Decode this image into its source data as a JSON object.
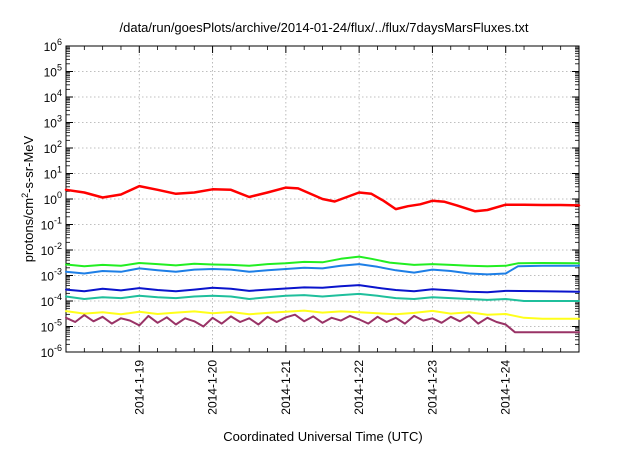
{
  "chart_data": {
    "type": "line",
    "title": "/data/run/goesPlots/archive/2014-01-24/flux/../flux/7daysMarsFluxes.txt",
    "xlabel": "Coordinated Universal Time (UTC)",
    "ylabel": {
      "base": "protons/cm",
      "sup": "2",
      "rest": "-s-sr-MeV"
    },
    "y_scale": "log",
    "ylim": [
      1e-06,
      1000000.0
    ],
    "y_ticks": [
      {
        "value": 1000000.0,
        "base": "10",
        "exp": "6"
      },
      {
        "value": 100000.0,
        "base": "10",
        "exp": "5"
      },
      {
        "value": 10000.0,
        "base": "10",
        "exp": "4"
      },
      {
        "value": 1000.0,
        "base": "10",
        "exp": "3"
      },
      {
        "value": 100.0,
        "base": "10",
        "exp": "2"
      },
      {
        "value": 10.0,
        "base": "10",
        "exp": "1"
      },
      {
        "value": 1,
        "base": "10",
        "exp": "0"
      },
      {
        "value": 0.1,
        "base": "10",
        "exp": "-1"
      },
      {
        "value": 0.01,
        "base": "10",
        "exp": "-2"
      },
      {
        "value": 0.001,
        "base": "10",
        "exp": "-3"
      },
      {
        "value": 0.0001,
        "base": "10",
        "exp": "-4"
      },
      {
        "value": 1e-05,
        "base": "10",
        "exp": "-5"
      },
      {
        "value": 1e-06,
        "base": "10",
        "exp": "-6"
      }
    ],
    "xlim": [
      "2014-01-18 00:00",
      "2014-01-25 00:00"
    ],
    "x_ticks": [
      {
        "value": "2014-01-19 00:00",
        "label": "2014-1-19"
      },
      {
        "value": "2014-01-20 00:00",
        "label": "2014-1-20"
      },
      {
        "value": "2014-01-21 00:00",
        "label": "2014-1-21"
      },
      {
        "value": "2014-01-22 00:00",
        "label": "2014-1-22"
      },
      {
        "value": "2014-01-23 00:00",
        "label": "2014-1-23"
      },
      {
        "value": "2014-01-24 00:00",
        "label": "2014-1-24"
      }
    ],
    "grid": true,
    "series": [
      {
        "color": "#ff0000",
        "width": 2.5,
        "points": [
          [
            "2014-01-18 00:00",
            2.3
          ],
          [
            "2014-01-18 06:00",
            1.8
          ],
          [
            "2014-01-18 12:00",
            1.15
          ],
          [
            "2014-01-18 18:00",
            1.5
          ],
          [
            "2014-01-19 00:00",
            3.2
          ],
          [
            "2014-01-19 06:00",
            2.3
          ],
          [
            "2014-01-19 12:00",
            1.6
          ],
          [
            "2014-01-19 18:00",
            1.8
          ],
          [
            "2014-01-20 00:00",
            2.4
          ],
          [
            "2014-01-20 06:00",
            2.3
          ],
          [
            "2014-01-20 12:00",
            1.2
          ],
          [
            "2014-01-20 18:00",
            1.8
          ],
          [
            "2014-01-21 00:00",
            2.8
          ],
          [
            "2014-01-21 04:00",
            2.6
          ],
          [
            "2014-01-21 12:00",
            1.0
          ],
          [
            "2014-01-21 16:00",
            0.8
          ],
          [
            "2014-01-21 20:00",
            1.2
          ],
          [
            "2014-01-22 00:00",
            1.8
          ],
          [
            "2014-01-22 04:00",
            1.6
          ],
          [
            "2014-01-22 08:00",
            0.85
          ],
          [
            "2014-01-22 12:00",
            0.4
          ],
          [
            "2014-01-22 16:00",
            0.52
          ],
          [
            "2014-01-22 20:00",
            0.62
          ],
          [
            "2014-01-23 00:00",
            0.85
          ],
          [
            "2014-01-23 04:00",
            0.78
          ],
          [
            "2014-01-23 08:00",
            0.56
          ],
          [
            "2014-01-23 14:00",
            0.33
          ],
          [
            "2014-01-23 18:00",
            0.37
          ],
          [
            "2014-01-24 00:00",
            0.6
          ],
          [
            "2014-01-24 06:00",
            0.6
          ],
          [
            "2014-01-24 12:00",
            0.58
          ],
          [
            "2014-01-24 18:00",
            0.58
          ],
          [
            "2014-01-25 00:00",
            0.56
          ]
        ]
      },
      {
        "color": "#22ee22",
        "width": 2,
        "points": [
          [
            "2014-01-18 00:00",
            0.0027
          ],
          [
            "2014-01-18 06:00",
            0.0023
          ],
          [
            "2014-01-18 12:00",
            0.0026
          ],
          [
            "2014-01-18 18:00",
            0.0024
          ],
          [
            "2014-01-19 00:00",
            0.0031
          ],
          [
            "2014-01-19 06:00",
            0.0028
          ],
          [
            "2014-01-19 12:00",
            0.0025
          ],
          [
            "2014-01-19 18:00",
            0.0029
          ],
          [
            "2014-01-20 00:00",
            0.0027
          ],
          [
            "2014-01-20 06:00",
            0.0026
          ],
          [
            "2014-01-20 12:00",
            0.0024
          ],
          [
            "2014-01-20 18:00",
            0.0028
          ],
          [
            "2014-01-21 00:00",
            0.003
          ],
          [
            "2014-01-21 06:00",
            0.0034
          ],
          [
            "2014-01-21 12:00",
            0.0033
          ],
          [
            "2014-01-21 18:00",
            0.0045
          ],
          [
            "2014-01-22 00:00",
            0.0055
          ],
          [
            "2014-01-22 04:00",
            0.0045
          ],
          [
            "2014-01-22 10:00",
            0.0032
          ],
          [
            "2014-01-22 18:00",
            0.0026
          ],
          [
            "2014-01-23 00:00",
            0.0028
          ],
          [
            "2014-01-23 06:00",
            0.0026
          ],
          [
            "2014-01-23 12:00",
            0.0024
          ],
          [
            "2014-01-23 18:00",
            0.0023
          ],
          [
            "2014-01-24 00:00",
            0.0024
          ],
          [
            "2014-01-24 04:00",
            0.003
          ],
          [
            "2014-01-24 12:00",
            0.0031
          ],
          [
            "2014-01-25 00:00",
            0.003
          ]
        ]
      },
      {
        "color": "#1e7fe6",
        "width": 2,
        "points": [
          [
            "2014-01-18 00:00",
            0.0014
          ],
          [
            "2014-01-18 06:00",
            0.0012
          ],
          [
            "2014-01-18 12:00",
            0.0015
          ],
          [
            "2014-01-18 18:00",
            0.0014
          ],
          [
            "2014-01-19 00:00",
            0.0019
          ],
          [
            "2014-01-19 06:00",
            0.0016
          ],
          [
            "2014-01-19 12:00",
            0.0014
          ],
          [
            "2014-01-19 18:00",
            0.0017
          ],
          [
            "2014-01-20 00:00",
            0.0018
          ],
          [
            "2014-01-20 06:00",
            0.0017
          ],
          [
            "2014-01-20 12:00",
            0.0014
          ],
          [
            "2014-01-20 18:00",
            0.0016
          ],
          [
            "2014-01-21 00:00",
            0.0018
          ],
          [
            "2014-01-21 06:00",
            0.002
          ],
          [
            "2014-01-21 12:00",
            0.0019
          ],
          [
            "2014-01-21 18:00",
            0.0024
          ],
          [
            "2014-01-22 00:00",
            0.0028
          ],
          [
            "2014-01-22 06:00",
            0.0022
          ],
          [
            "2014-01-22 12:00",
            0.0016
          ],
          [
            "2014-01-22 18:00",
            0.0013
          ],
          [
            "2014-01-23 00:00",
            0.0017
          ],
          [
            "2014-01-23 06:00",
            0.0015
          ],
          [
            "2014-01-23 12:00",
            0.0012
          ],
          [
            "2014-01-23 18:00",
            0.0011
          ],
          [
            "2014-01-24 00:00",
            0.0012
          ],
          [
            "2014-01-24 04:00",
            0.0023
          ],
          [
            "2014-01-24 12:00",
            0.0024
          ],
          [
            "2014-01-25 00:00",
            0.0024
          ]
        ]
      },
      {
        "color": "#0a14cc",
        "width": 2,
        "points": [
          [
            "2014-01-18 00:00",
            0.00028
          ],
          [
            "2014-01-18 06:00",
            0.00024
          ],
          [
            "2014-01-18 12:00",
            0.0003
          ],
          [
            "2014-01-18 18:00",
            0.00026
          ],
          [
            "2014-01-19 00:00",
            0.00032
          ],
          [
            "2014-01-19 06:00",
            0.00027
          ],
          [
            "2014-01-19 12:00",
            0.00024
          ],
          [
            "2014-01-19 18:00",
            0.00028
          ],
          [
            "2014-01-20 00:00",
            0.00033
          ],
          [
            "2014-01-20 06:00",
            0.0003
          ],
          [
            "2014-01-20 12:00",
            0.00025
          ],
          [
            "2014-01-20 18:00",
            0.00028
          ],
          [
            "2014-01-21 00:00",
            0.00031
          ],
          [
            "2014-01-21 06:00",
            0.00034
          ],
          [
            "2014-01-21 12:00",
            0.00033
          ],
          [
            "2014-01-21 18:00",
            0.00038
          ],
          [
            "2014-01-22 00:00",
            0.00042
          ],
          [
            "2014-01-22 06:00",
            0.00033
          ],
          [
            "2014-01-22 12:00",
            0.00027
          ],
          [
            "2014-01-22 18:00",
            0.00024
          ],
          [
            "2014-01-23 00:00",
            0.00029
          ],
          [
            "2014-01-23 06:00",
            0.00026
          ],
          [
            "2014-01-23 12:00",
            0.00023
          ],
          [
            "2014-01-23 18:00",
            0.00022
          ],
          [
            "2014-01-24 00:00",
            0.00025
          ],
          [
            "2014-01-24 12:00",
            0.00024
          ],
          [
            "2014-01-25 00:00",
            0.00023
          ]
        ]
      },
      {
        "color": "#1fbf9c",
        "width": 2,
        "points": [
          [
            "2014-01-18 00:00",
            0.00015
          ],
          [
            "2014-01-18 06:00",
            0.00012
          ],
          [
            "2014-01-18 12:00",
            0.00014
          ],
          [
            "2014-01-18 18:00",
            0.00013
          ],
          [
            "2014-01-19 00:00",
            0.00016
          ],
          [
            "2014-01-19 06:00",
            0.00014
          ],
          [
            "2014-01-19 12:00",
            0.00013
          ],
          [
            "2014-01-19 18:00",
            0.00015
          ],
          [
            "2014-01-20 00:00",
            0.00016
          ],
          [
            "2014-01-20 06:00",
            0.00015
          ],
          [
            "2014-01-20 12:00",
            0.00012
          ],
          [
            "2014-01-20 18:00",
            0.00014
          ],
          [
            "2014-01-21 00:00",
            0.00016
          ],
          [
            "2014-01-21 06:00",
            0.00017
          ],
          [
            "2014-01-21 12:00",
            0.00015
          ],
          [
            "2014-01-21 18:00",
            0.00017
          ],
          [
            "2014-01-22 00:00",
            0.00019
          ],
          [
            "2014-01-22 06:00",
            0.00016
          ],
          [
            "2014-01-22 12:00",
            0.00013
          ],
          [
            "2014-01-22 18:00",
            0.00012
          ],
          [
            "2014-01-23 00:00",
            0.00014
          ],
          [
            "2014-01-23 06:00",
            0.00013
          ],
          [
            "2014-01-23 12:00",
            0.00012
          ],
          [
            "2014-01-23 18:00",
            0.00011
          ],
          [
            "2014-01-24 00:00",
            0.00012
          ],
          [
            "2014-01-24 06:00",
            0.0001
          ],
          [
            "2014-01-24 12:00",
            0.0001
          ],
          [
            "2014-01-25 00:00",
            0.0001
          ]
        ]
      },
      {
        "color": "#ffff1a",
        "width": 2,
        "points": [
          [
            "2014-01-18 00:00",
            4e-05
          ],
          [
            "2014-01-18 06:00",
            3.2e-05
          ],
          [
            "2014-01-18 12:00",
            3.6e-05
          ],
          [
            "2014-01-18 18:00",
            3e-05
          ],
          [
            "2014-01-19 00:00",
            3.8e-05
          ],
          [
            "2014-01-19 06:00",
            3.1e-05
          ],
          [
            "2014-01-19 12:00",
            3.5e-05
          ],
          [
            "2014-01-19 18:00",
            3.9e-05
          ],
          [
            "2014-01-20 00:00",
            3.3e-05
          ],
          [
            "2014-01-20 06:00",
            3.7e-05
          ],
          [
            "2014-01-20 12:00",
            3e-05
          ],
          [
            "2014-01-20 18:00",
            3.4e-05
          ],
          [
            "2014-01-21 00:00",
            3.8e-05
          ],
          [
            "2014-01-21 06:00",
            4.2e-05
          ],
          [
            "2014-01-21 12:00",
            3.5e-05
          ],
          [
            "2014-01-21 18:00",
            3.9e-05
          ],
          [
            "2014-01-22 00:00",
            3.6e-05
          ],
          [
            "2014-01-22 06:00",
            3.3e-05
          ],
          [
            "2014-01-22 12:00",
            3e-05
          ],
          [
            "2014-01-22 18:00",
            3.4e-05
          ],
          [
            "2014-01-23 00:00",
            4.1e-05
          ],
          [
            "2014-01-23 06:00",
            3.2e-05
          ],
          [
            "2014-01-23 12:00",
            3.6e-05
          ],
          [
            "2014-01-23 18:00",
            2.9e-05
          ],
          [
            "2014-01-24 00:00",
            3.1e-05
          ],
          [
            "2014-01-24 06:00",
            2.2e-05
          ],
          [
            "2014-01-24 12:00",
            2e-05
          ],
          [
            "2014-01-25 00:00",
            2e-05
          ]
        ]
      },
      {
        "color": "#993366",
        "width": 2,
        "points": [
          [
            "2014-01-18 00:00",
            2.2e-05
          ],
          [
            "2014-01-18 03:00",
            1.5e-05
          ],
          [
            "2014-01-18 06:00",
            2.8e-05
          ],
          [
            "2014-01-18 09:00",
            1.6e-05
          ],
          [
            "2014-01-18 12:00",
            2.4e-05
          ],
          [
            "2014-01-18 15:00",
            1.3e-05
          ],
          [
            "2014-01-18 18:00",
            2.1e-05
          ],
          [
            "2014-01-18 21:00",
            1.7e-05
          ],
          [
            "2014-01-19 00:00",
            1.1e-05
          ],
          [
            "2014-01-19 03:00",
            2.6e-05
          ],
          [
            "2014-01-19 06:00",
            1.4e-05
          ],
          [
            "2014-01-19 09:00",
            2.3e-05
          ],
          [
            "2014-01-19 12:00",
            1.2e-05
          ],
          [
            "2014-01-19 15:00",
            2.1e-05
          ],
          [
            "2014-01-19 18:00",
            1.6e-05
          ],
          [
            "2014-01-19 21:00",
            1e-05
          ],
          [
            "2014-01-20 00:00",
            2.2e-05
          ],
          [
            "2014-01-20 03:00",
            1.3e-05
          ],
          [
            "2014-01-20 06:00",
            2.5e-05
          ],
          [
            "2014-01-20 09:00",
            1.5e-05
          ],
          [
            "2014-01-20 12:00",
            2.1e-05
          ],
          [
            "2014-01-20 15:00",
            1.2e-05
          ],
          [
            "2014-01-20 18:00",
            2.4e-05
          ],
          [
            "2014-01-20 21:00",
            1.5e-05
          ],
          [
            "2014-01-21 00:00",
            2.3e-05
          ],
          [
            "2014-01-21 03:00",
            2.9e-05
          ],
          [
            "2014-01-21 06:00",
            1.6e-05
          ],
          [
            "2014-01-21 09:00",
            2.5e-05
          ],
          [
            "2014-01-21 12:00",
            1.4e-05
          ],
          [
            "2014-01-21 15:00",
            2.2e-05
          ],
          [
            "2014-01-21 18:00",
            1.7e-05
          ],
          [
            "2014-01-21 21:00",
            2.6e-05
          ],
          [
            "2014-01-22 00:00",
            1.9e-05
          ],
          [
            "2014-01-22 03:00",
            1.3e-05
          ],
          [
            "2014-01-22 06:00",
            2.4e-05
          ],
          [
            "2014-01-22 09:00",
            1.5e-05
          ],
          [
            "2014-01-22 12:00",
            2.2e-05
          ],
          [
            "2014-01-22 15:00",
            1.3e-05
          ],
          [
            "2014-01-22 18:00",
            2.6e-05
          ],
          [
            "2014-01-22 21:00",
            1.7e-05
          ],
          [
            "2014-01-23 00:00",
            2.1e-05
          ],
          [
            "2014-01-23 03:00",
            1.4e-05
          ],
          [
            "2014-01-23 06:00",
            2.4e-05
          ],
          [
            "2014-01-23 09:00",
            1.6e-05
          ],
          [
            "2014-01-23 12:00",
            2.7e-05
          ],
          [
            "2014-01-23 15:00",
            1.3e-05
          ],
          [
            "2014-01-23 18:00",
            2.2e-05
          ],
          [
            "2014-01-23 21:00",
            1.5e-05
          ],
          [
            "2014-01-24 00:00",
            1.2e-05
          ],
          [
            "2014-01-24 03:00",
            6e-06
          ],
          [
            "2014-01-24 09:00",
            6e-06
          ],
          [
            "2014-01-24 18:00",
            6e-06
          ],
          [
            "2014-01-25 00:00",
            6e-06
          ]
        ]
      }
    ]
  }
}
